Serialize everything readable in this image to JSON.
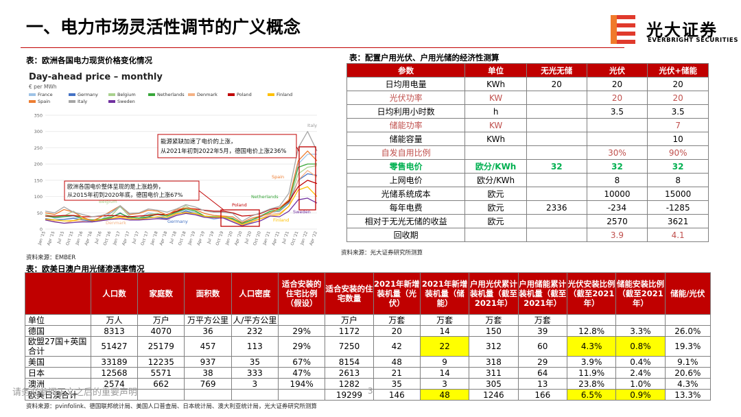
{
  "header": {
    "title": "一、电力市场灵活性调节的广义概念",
    "logo_cn": "光大证券",
    "logo_en": "EVERBRIGHT SECURITIES"
  },
  "chart_caption": "表：欧洲各国电力现货价格变化情况",
  "chart_source": "资料来源：EMBER",
  "chart_data": {
    "type": "line",
    "title": "Day-ahead price – monthly",
    "ylabel": "€ per MWh",
    "ylim": [
      0,
      350
    ],
    "yticks": [
      0,
      50,
      100,
      150,
      200,
      250,
      300,
      350
    ],
    "x": [
      "Jan '15",
      "Apr '15",
      "Jul '15",
      "Oct '15",
      "Jan '16",
      "Apr '16",
      "Jul '16",
      "Oct '16",
      "Jan '17",
      "Apr '17",
      "Jul '17",
      "Oct '17",
      "Jan '18",
      "Apr '18",
      "Jul '18",
      "Oct '18",
      "Jan '19",
      "Apr '19",
      "Jul '19",
      "Oct '19",
      "Jan '20",
      "Apr '20",
      "Jul '20",
      "Oct '20",
      "Jan '21",
      "Apr '21",
      "Jul '21",
      "Oct '21",
      "Jan '22",
      "Apr '22"
    ],
    "grid": true,
    "legend_position": "top",
    "series": [
      {
        "name": "France",
        "color": "#9ec3e6",
        "values": [
          45,
          33,
          38,
          38,
          32,
          24,
          30,
          50,
          68,
          40,
          34,
          50,
          45,
          35,
          50,
          58,
          52,
          38,
          30,
          36,
          34,
          12,
          20,
          42,
          52,
          55,
          82,
          200,
          230,
          230
        ]
      },
      {
        "name": "Germany",
        "color": "#4472c4",
        "values": [
          32,
          28,
          30,
          33,
          28,
          24,
          27,
          35,
          50,
          32,
          30,
          37,
          36,
          32,
          45,
          55,
          48,
          38,
          36,
          34,
          30,
          17,
          28,
          38,
          52,
          55,
          80,
          150,
          170,
          165
        ]
      },
      {
        "name": "Belgium",
        "color": "#a9d18e",
        "values": [
          45,
          38,
          40,
          55,
          36,
          26,
          30,
          40,
          70,
          38,
          33,
          45,
          48,
          42,
          52,
          72,
          55,
          38,
          34,
          37,
          32,
          14,
          26,
          40,
          52,
          57,
          84,
          170,
          190,
          195
        ]
      },
      {
        "name": "Netherlands",
        "color": "#38a73a",
        "values": [
          40,
          36,
          38,
          42,
          32,
          28,
          30,
          36,
          48,
          36,
          34,
          38,
          46,
          40,
          52,
          62,
          56,
          40,
          38,
          38,
          32,
          18,
          28,
          40,
          55,
          60,
          88,
          190,
          200,
          200
        ]
      },
      {
        "name": "Denmark",
        "color": "#f4b183",
        "values": [
          28,
          24,
          18,
          25,
          24,
          22,
          26,
          32,
          36,
          28,
          28,
          30,
          32,
          30,
          45,
          52,
          45,
          36,
          36,
          34,
          24,
          12,
          24,
          32,
          45,
          48,
          70,
          150,
          180,
          160
        ]
      },
      {
        "name": "Poland",
        "color": "#c00000",
        "values": [
          40,
          40,
          42,
          42,
          38,
          38,
          40,
          42,
          40,
          38,
          40,
          42,
          45,
          45,
          55,
          65,
          62,
          58,
          55,
          55,
          50,
          40,
          42,
          48,
          60,
          65,
          85,
          130,
          150,
          140
        ]
      },
      {
        "name": "Finland",
        "color": "#ffc000",
        "values": [
          30,
          28,
          25,
          26,
          32,
          26,
          28,
          32,
          38,
          32,
          30,
          34,
          38,
          36,
          48,
          50,
          48,
          40,
          36,
          38,
          28,
          14,
          22,
          32,
          40,
          44,
          70,
          120,
          130,
          100
        ]
      },
      {
        "name": "Spain",
        "color": "#ed7d31",
        "values": [
          50,
          45,
          60,
          52,
          36,
          25,
          38,
          55,
          72,
          45,
          48,
          58,
          55,
          43,
          60,
          65,
          60,
          48,
          42,
          40,
          38,
          20,
          33,
          40,
          48,
          65,
          90,
          210,
          240,
          210
        ]
      },
      {
        "name": "Italy",
        "color": "#a6a6a6",
        "values": [
          55,
          50,
          68,
          52,
          45,
          38,
          42,
          50,
          72,
          48,
          50,
          62,
          58,
          52,
          62,
          75,
          68,
          56,
          52,
          52,
          48,
          24,
          40,
          50,
          62,
          70,
          110,
          250,
          300,
          240
        ]
      },
      {
        "name": "Sweden",
        "color": "#7030a0",
        "values": [
          28,
          22,
          18,
          20,
          22,
          22,
          26,
          30,
          32,
          28,
          28,
          30,
          32,
          30,
          42,
          48,
          44,
          36,
          34,
          34,
          22,
          10,
          18,
          26,
          40,
          38,
          55,
          90,
          95,
          80
        ]
      }
    ],
    "annotations": [
      {
        "text": "能源紧缺加速了电价的上涨，\n从2021年初到2022年5月，德国电价上涨236%"
      },
      {
        "text": "欧洲各国电价整体呈现的是上涨趋势，\n从2015年初到2020年底，德国电价上涨67%"
      }
    ],
    "series_labels": [
      "Italy",
      "Spain",
      "Belgium",
      "Netherlands",
      "Poland",
      "Denmark",
      "Germany",
      "Finland",
      "Sweden"
    ]
  },
  "econ_caption": "表：配置户用光伏、户用光储的经济性测算",
  "econ_source": "资料来源：光大证券研究所测算",
  "econ_table": {
    "headers": [
      "参数",
      "单位",
      "无光无储",
      "光伏",
      "光伏+储能"
    ],
    "rows": [
      {
        "cells": [
          "日均用电量",
          "KWh",
          "20",
          "20",
          "20"
        ],
        "style": ""
      },
      {
        "cells": [
          "光伏功率",
          "KW",
          "",
          "20",
          "20"
        ],
        "style": "red"
      },
      {
        "cells": [
          "日均利用小时数",
          "h",
          "",
          "3.5",
          "3.5"
        ],
        "style": ""
      },
      {
        "cells": [
          "储能功率",
          "KW",
          "",
          "",
          "7"
        ],
        "style": "red"
      },
      {
        "cells": [
          "储能容量",
          "KWh",
          "",
          "",
          "10"
        ],
        "style": ""
      },
      {
        "cells": [
          "自发自用比例",
          "",
          "",
          "30%",
          "90%"
        ],
        "style": "red"
      },
      {
        "cells": [
          "零售电价",
          "欧分/KWh",
          "32",
          "32",
          "32"
        ],
        "style": "green"
      },
      {
        "cells": [
          "上网电价",
          "欧分/KWh",
          "",
          "8",
          "8"
        ],
        "style": ""
      },
      {
        "cells": [
          "光储系统成本",
          "欧元",
          "",
          "10000",
          "15000"
        ],
        "style": ""
      },
      {
        "cells": [
          "每年电费",
          "欧元",
          "2336",
          "-234",
          "-1285"
        ],
        "style": ""
      },
      {
        "cells": [
          "相对于无光无储的收益",
          "欧元",
          "",
          "2570",
          "3621"
        ],
        "style": ""
      },
      {
        "cells": [
          "回收期",
          "",
          "",
          "3.9",
          "4.1"
        ],
        "style": "redlast"
      }
    ]
  },
  "pen_caption": "表：欧美日澳户用光储渗透率情况",
  "pen_source": "资料来源：pvinfolink、德国联邦统计局、美国人口普查局、日本统计局、澳大利亚统计局，光大证券研究所测算",
  "pen_table": {
    "headers": [
      "",
      "人口数",
      "家庭数",
      "面积数",
      "人口密度",
      "适合安装的住宅比例（假设）",
      "适合安装的住宅数量",
      "2021年新增装机量（光伏）",
      "2021年新增装机量（储能）",
      "户用光伏累计装机量（截至2021年）",
      "户用储能累计装机量（截至2021年）",
      "光伏安装比例（截至2021年）",
      "储能安装比例（截至2021年）",
      "储能/光伏"
    ],
    "rows": [
      [
        "单位",
        "万人",
        "万户",
        "万平方公里",
        "人/平方公里",
        "",
        "万户",
        "万套",
        "万套",
        "万套",
        "万套",
        "",
        "",
        ""
      ],
      [
        "德国",
        "8313",
        "4070",
        "36",
        "232",
        "29%",
        "1172",
        "20",
        "14",
        "150",
        "39",
        "12.8%",
        "3.3%",
        "26.0%"
      ],
      [
        "欧盟27国+英国合计",
        "51427",
        "25179",
        "457",
        "113",
        "29%",
        "7250",
        "42",
        "22",
        "312",
        "60",
        "4.3%",
        "0.8%",
        "19.3%"
      ],
      [
        "美国",
        "33189",
        "12235",
        "937",
        "35",
        "67%",
        "8154",
        "48",
        "9",
        "318",
        "29",
        "3.9%",
        "0.4%",
        "9.1%"
      ],
      [
        "日本",
        "12568",
        "5571",
        "38",
        "333",
        "47%",
        "2613",
        "21",
        "14",
        "311",
        "64",
        "11.9%",
        "2.4%",
        "20.6%"
      ],
      [
        "澳洲",
        "2574",
        "662",
        "769",
        "3",
        "194%",
        "1282",
        "35",
        "3",
        "305",
        "13",
        "23.8%",
        "1.0%",
        "4.3%"
      ],
      [
        "欧美日澳合计",
        "",
        "",
        "",
        "",
        "",
        "19299",
        "146",
        "48",
        "1246",
        "166",
        "6.5%",
        "0.9%",
        "13.3%"
      ]
    ],
    "highlight": [
      [
        2,
        8
      ],
      [
        2,
        11
      ],
      [
        2,
        12
      ],
      [
        6,
        8
      ],
      [
        6,
        11
      ],
      [
        6,
        12
      ]
    ]
  },
  "footer": {
    "disclaimer": "请务必参阅正文之后的重要声明",
    "page": "3"
  }
}
